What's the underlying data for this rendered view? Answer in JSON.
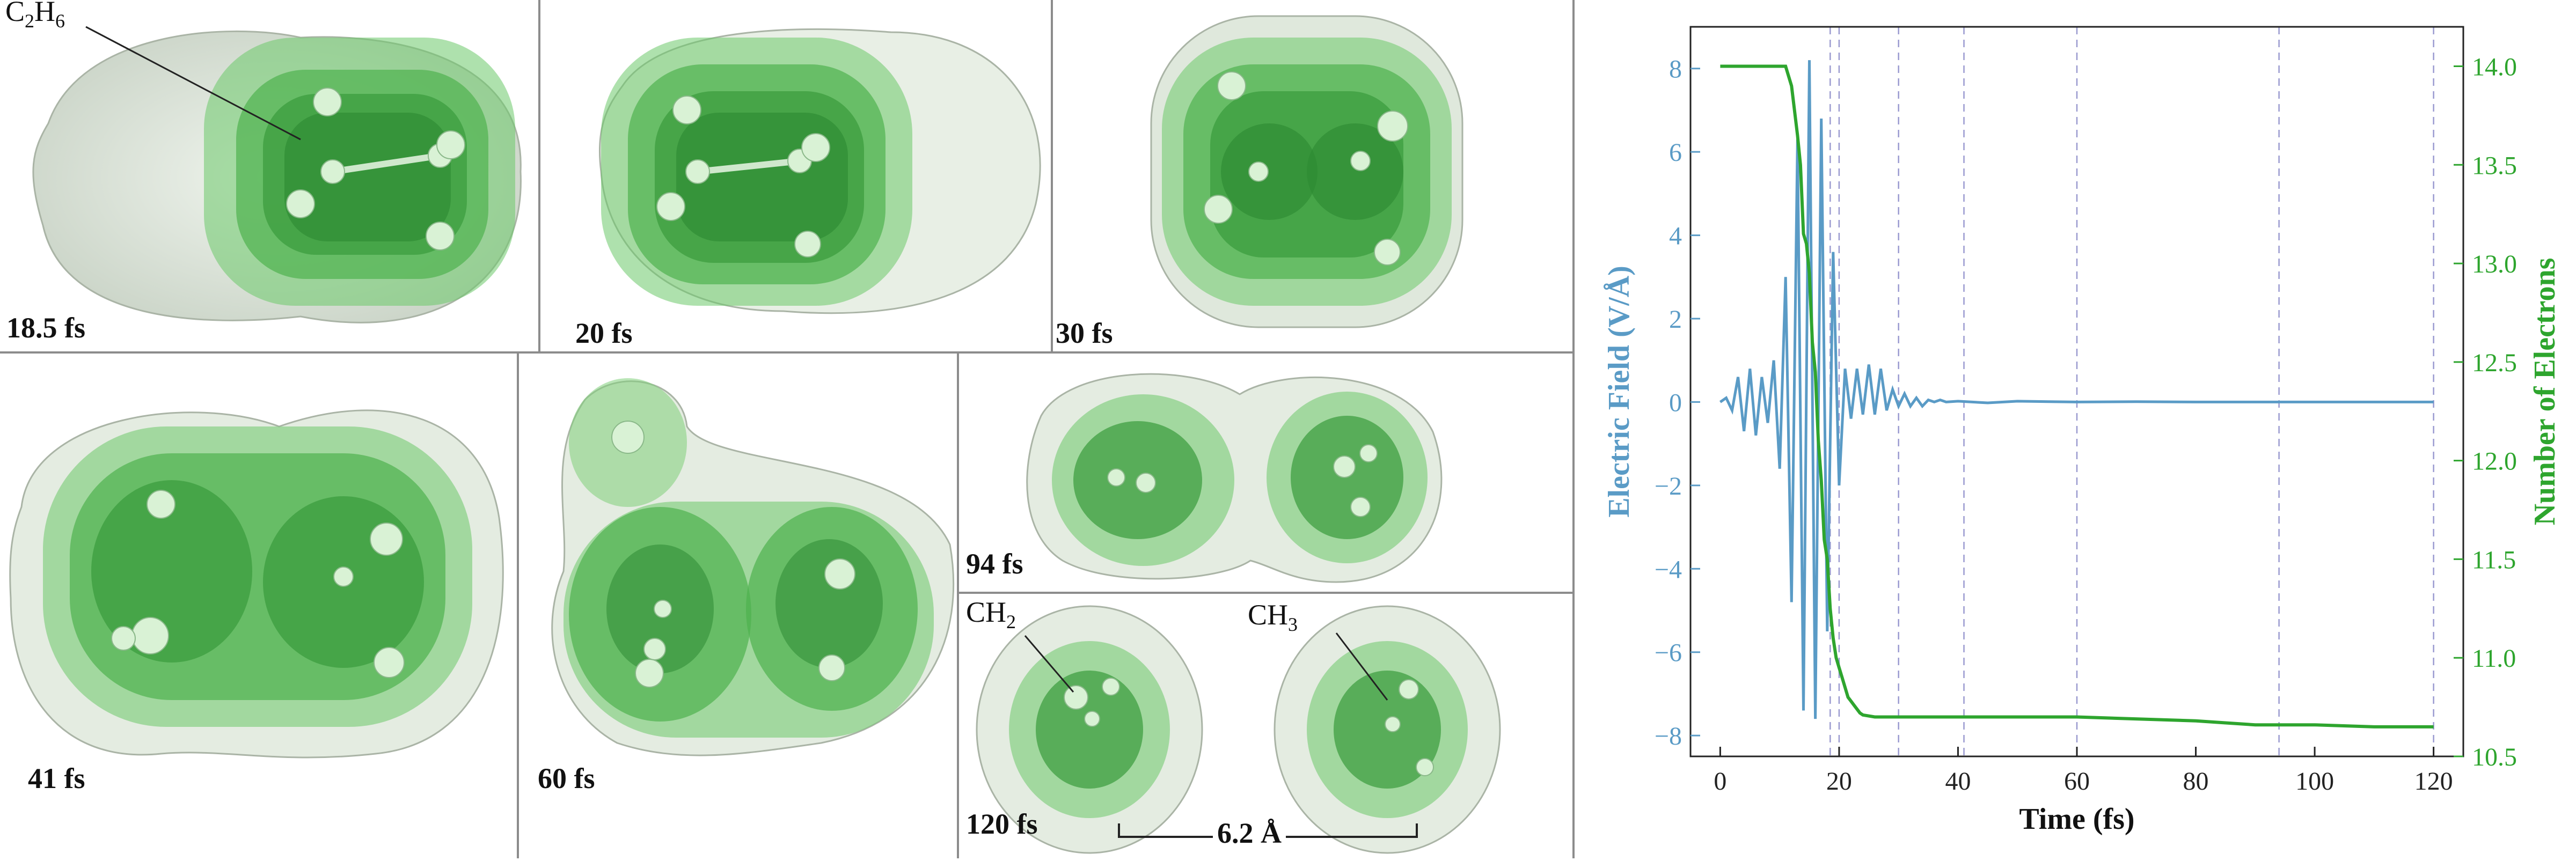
{
  "panels": [
    {
      "id": "p1",
      "time_label": "18.5 fs",
      "molecule_label_main": "C",
      "molecule_label_sub1": "2",
      "molecule_label_mid": "H",
      "molecule_label_sub2": "6"
    },
    {
      "id": "p2",
      "time_label": "20 fs"
    },
    {
      "id": "p3",
      "time_label": "30 fs"
    },
    {
      "id": "p4",
      "time_label": "41 fs"
    },
    {
      "id": "p5",
      "time_label": "60 fs"
    },
    {
      "id": "p6",
      "time_label": "94 fs"
    },
    {
      "id": "p7",
      "time_label": "120 fs",
      "ch2_main": "CH",
      "ch2_sub": "2",
      "ch3_main": "CH",
      "ch3_sub": "3",
      "distance_label": "6.2 Å"
    }
  ],
  "colors": {
    "field_line": "#5a9bc6",
    "electron_line": "#2ea52e",
    "vline": "#9a9ad0",
    "shell_outer": "#d8e2d6",
    "shell_green": "#58bf5a",
    "atom": "#cfeccc"
  },
  "chart_data": {
    "type": "line",
    "xlabel": "Time (fs)",
    "ylabel_left": "Electric Field (V/Å)",
    "ylabel_right": "Number of Electrons",
    "xlim": [
      -5,
      125
    ],
    "ylim_left": [
      -8.5,
      9
    ],
    "ylim_right": [
      10.5,
      14.2
    ],
    "x_ticks": [
      0,
      20,
      40,
      60,
      80,
      100,
      120
    ],
    "y_left_ticks": [
      -8,
      -6,
      -4,
      -2,
      0,
      2,
      4,
      6,
      8
    ],
    "y_right_ticks": [
      10.5,
      11.0,
      11.5,
      12.0,
      12.5,
      13.0,
      13.5,
      14.0
    ],
    "vertical_lines_x": [
      18.5,
      20,
      30,
      41,
      60,
      94,
      120
    ],
    "series": [
      {
        "axis": "left",
        "x": [
          0,
          1,
          2,
          3,
          4,
          5,
          6,
          7,
          8,
          9,
          10,
          11,
          12,
          13,
          14,
          15,
          16,
          17,
          18,
          19,
          20,
          21,
          22,
          23,
          24,
          25,
          26,
          27,
          28,
          29,
          30,
          31,
          32,
          33,
          34,
          35,
          36,
          37,
          38,
          40,
          45,
          50,
          60,
          70,
          80,
          90,
          100,
          110,
          120
        ],
        "y": [
          0,
          0.1,
          -0.2,
          0.6,
          -0.7,
          0.8,
          -0.8,
          0.6,
          -0.5,
          1.0,
          -1.6,
          3.0,
          -4.8,
          6.3,
          -7.4,
          8.2,
          -7.6,
          6.8,
          -5.5,
          3.6,
          -2.0,
          0.8,
          -0.4,
          0.8,
          -0.3,
          0.9,
          -0.3,
          0.8,
          -0.2,
          0.3,
          -0.1,
          0.2,
          -0.1,
          0.1,
          -0.1,
          0.05,
          0,
          0.05,
          0,
          0.02,
          -0.02,
          0.02,
          0,
          0.01,
          0,
          0,
          0,
          0,
          0
        ]
      },
      {
        "axis": "right",
        "x": [
          0,
          11,
          12,
          13,
          13.5,
          14,
          14.5,
          15,
          15.5,
          16,
          16.5,
          17,
          17.5,
          18,
          18.5,
          19,
          19.5,
          20,
          20.5,
          21,
          21.5,
          22,
          22.5,
          23,
          23.5,
          24,
          26,
          30,
          40,
          60,
          80,
          85,
          90,
          100,
          110,
          120
        ],
        "y": [
          14.0,
          14.0,
          13.9,
          13.65,
          13.5,
          13.15,
          13.1,
          12.95,
          12.6,
          12.45,
          12.1,
          11.9,
          11.6,
          11.5,
          11.25,
          11.1,
          11.0,
          10.95,
          10.9,
          10.85,
          10.8,
          10.78,
          10.76,
          10.74,
          10.72,
          10.71,
          10.7,
          10.7,
          10.7,
          10.7,
          10.68,
          10.67,
          10.66,
          10.66,
          10.65,
          10.65
        ]
      }
    ]
  }
}
